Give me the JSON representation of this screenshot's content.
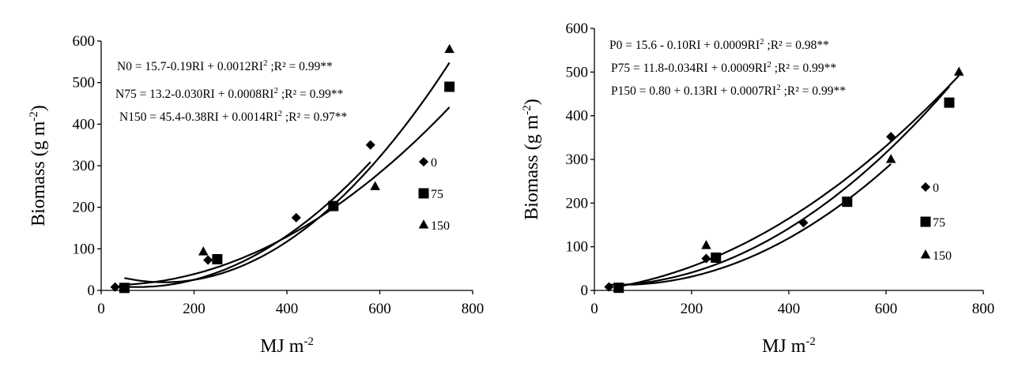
{
  "chart_data": [
    {
      "type": "scatter",
      "xlabel": "MJ m",
      "xlabel_sup": "-2",
      "ylabel": "Biomass (g m",
      "ylabel_sup": "-2",
      "ylabel_close": ")",
      "xlim": [
        0,
        800
      ],
      "ylim": [
        0,
        600
      ],
      "xticks": [
        0,
        200,
        400,
        600,
        800
      ],
      "yticks": [
        0,
        100,
        200,
        300,
        400,
        500,
        600
      ],
      "grid": false,
      "legend_position": "right",
      "equations": [
        {
          "main": "N0 = 15.7-0.19RI + 0.0012RI",
          "sup": "2",
          "tail": " ;R² = 0.99**"
        },
        {
          "main": "N75 = 13.2-0.030RI + 0.0008RI",
          "sup": "2",
          "tail": " ;R² = 0.99**"
        },
        {
          "main": "N150 = 45.4-0.38RI + 0.0014RI",
          "sup": "2",
          "tail": " ;R² = 0.97**"
        }
      ],
      "series": [
        {
          "name": "0",
          "marker": "diamond",
          "x": [
            30,
            230,
            420,
            580
          ],
          "y": [
            8,
            73,
            175,
            350
          ],
          "fit": [
            15.7,
            -0.19,
            0.0012
          ],
          "fit_range": [
            30,
            580
          ]
        },
        {
          "name": "75",
          "marker": "square",
          "x": [
            50,
            250,
            500,
            750
          ],
          "y": [
            6,
            75,
            203,
            490
          ],
          "fit": [
            13.2,
            -0.03,
            0.0008
          ],
          "fit_range": [
            50,
            750
          ]
        },
        {
          "name": "150",
          "marker": "triangle",
          "x": [
            220,
            590,
            750
          ],
          "y": [
            93,
            250,
            580
          ],
          "fit": [
            45.4,
            -0.38,
            0.0014
          ],
          "fit_range": [
            50,
            750
          ]
        }
      ]
    },
    {
      "type": "scatter",
      "xlabel": "MJ m",
      "xlabel_sup": "-2",
      "ylabel": "Biomass (g m",
      "ylabel_sup": "-2",
      "ylabel_close": ")",
      "xlim": [
        0,
        800
      ],
      "ylim": [
        0,
        600
      ],
      "xticks": [
        0,
        200,
        400,
        600,
        800
      ],
      "yticks": [
        0,
        100,
        200,
        300,
        400,
        500,
        600
      ],
      "grid": false,
      "legend_position": "right",
      "equations": [
        {
          "main": "P0 = 15.6 - 0.10RI + 0.0009RI",
          "sup": "2",
          "tail": " ;R² = 0.98**"
        },
        {
          "main": "P75 = 11.8-0.034RI + 0.0009RI",
          "sup": "2",
          "tail": " ;R² = 0.99**"
        },
        {
          "main": "P150 = 0.80 + 0.13RI + 0.0007RI",
          "sup": "2",
          "tail": " ;R² = 0.99**"
        }
      ],
      "series": [
        {
          "name": "0",
          "marker": "diamond",
          "x": [
            30,
            230,
            430,
            610
          ],
          "y": [
            8,
            73,
            155,
            352
          ],
          "fit": [
            15.6,
            -0.1,
            0.0009
          ],
          "fit_range": [
            30,
            610
          ]
        },
        {
          "name": "75",
          "marker": "square",
          "x": [
            50,
            250,
            520,
            730
          ],
          "y": [
            6,
            75,
            203,
            430
          ],
          "fit": [
            11.8,
            -0.034,
            0.0009
          ],
          "fit_range": [
            50,
            730
          ]
        },
        {
          "name": "150",
          "marker": "triangle",
          "x": [
            230,
            610,
            750
          ],
          "y": [
            103,
            300,
            500
          ],
          "fit": [
            0.8,
            0.13,
            0.0007
          ],
          "fit_range": [
            50,
            750
          ]
        }
      ]
    }
  ]
}
